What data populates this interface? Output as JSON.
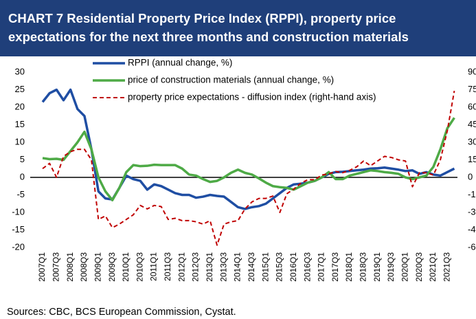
{
  "chart_data": {
    "type": "line",
    "title": "CHART 7 Residential Property Price Index (RPPI), property price expectations for the next three months and construction materials",
    "source": "Sources: CBC, BCS European Commission, Cystat.",
    "categories": [
      "2007Q1",
      null,
      "2007Q3",
      null,
      "2008Q1",
      null,
      "2008Q3",
      null,
      "2009Q1",
      null,
      "2009Q3",
      null,
      "2010Q1",
      null,
      "2010Q3",
      null,
      "2011Q1",
      null,
      "2011Q3",
      null,
      "2012Q1",
      null,
      "2012Q3",
      null,
      "2013Q1",
      null,
      "2013Q3",
      null,
      "2014Q1",
      null,
      "2014Q3",
      null,
      "2015Q1",
      null,
      "2015Q3",
      null,
      "2016Q1",
      null,
      "2016Q3",
      null,
      "2017Q1",
      null,
      "2017Q3",
      null,
      "2018Q1",
      null,
      "2018Q3",
      null,
      "2019Q1",
      null,
      "2019Q3",
      null,
      "2020Q1",
      null,
      "2020Q3",
      null,
      "2021Q1",
      null,
      "2021Q3",
      null
    ],
    "series": [
      {
        "name": "RPPI (annual change, %)",
        "color": "#1f4ea3",
        "values": [
          21.5,
          24,
          25,
          22,
          25,
          19.5,
          17.5,
          8,
          -4,
          -6,
          -6.3,
          -3,
          0.5,
          -0.5,
          -1,
          -3.5,
          -2,
          -2.5,
          -3.5,
          -4.5,
          -5,
          -5,
          -5.8,
          -5.5,
          -5,
          -5.3,
          -5.5,
          -7,
          -8.5,
          -9,
          -8.5,
          -8.2,
          -7.5,
          -6,
          -4.5,
          -3,
          -2,
          -1.8,
          -1.5,
          -1,
          0,
          1,
          1.5,
          1.6,
          1.8,
          2,
          2.2,
          2.5,
          2.6,
          2.8,
          2.5,
          2.2,
          1.8,
          2,
          1,
          1.5,
          0.8,
          0.5,
          1.5,
          2.5
        ]
      },
      {
        "name": "price of construction  materials (annual change, %)",
        "color": "#4eaa46",
        "values": [
          5.5,
          5.2,
          5.3,
          5,
          7.5,
          10,
          13,
          8,
          0,
          -4,
          -6.5,
          -3,
          1.5,
          3.5,
          3.2,
          3.3,
          3.6,
          3.5,
          3.5,
          3.5,
          2.5,
          0.8,
          0.5,
          -0.5,
          -1.3,
          -1,
          0,
          1.3,
          2.2,
          1.3,
          0.8,
          -0.3,
          -1.5,
          -2.5,
          -2.8,
          -3,
          -3.5,
          -2.5,
          -1.5,
          -1,
          0,
          1.5,
          -0.5,
          -0.5,
          0.5,
          1,
          1.5,
          2,
          1.8,
          1.5,
          1.3,
          1,
          0,
          -0.5,
          0,
          0.5,
          3,
          8,
          14,
          17
        ]
      },
      {
        "name": "property price expectations - diffusion index (right-hand axis)",
        "color": "#c00000",
        "axis": "y2",
        "dash": true,
        "values": [
          7.5,
          12,
          0,
          18,
          22,
          24,
          24,
          15,
          -36,
          -33,
          -43,
          -40,
          -36,
          -32,
          -24,
          -27,
          -24,
          -25,
          -36,
          -35,
          -37,
          -37,
          -38,
          -40,
          -37,
          -58,
          -40,
          -38,
          -37,
          -27,
          -21,
          -18,
          -18,
          -16,
          -30,
          -14,
          -10,
          -5,
          -2,
          -2,
          2,
          3,
          5,
          4,
          6,
          9,
          14,
          10,
          14,
          18,
          17,
          15,
          14,
          -8,
          4,
          4,
          2,
          15,
          40,
          74
        ]
      }
    ],
    "ylim": [
      -20,
      30
    ],
    "yticks": [
      -20,
      -15,
      -10,
      -5,
      0,
      5,
      10,
      15,
      20,
      25,
      30
    ],
    "y2lim": [
      -60,
      90
    ],
    "y2ticks": [
      -60,
      -45,
      -30,
      -15,
      0,
      15,
      30,
      45,
      60,
      75,
      90
    ]
  }
}
